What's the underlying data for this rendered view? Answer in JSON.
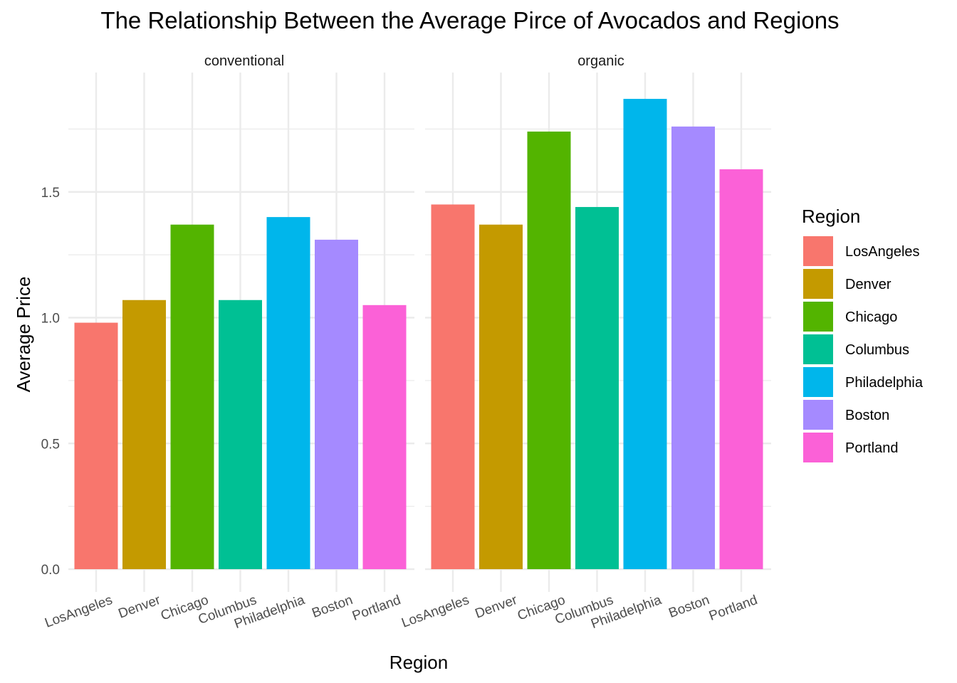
{
  "chart_data": {
    "type": "bar",
    "title": "The Relationship Between the Average Pirce of Avocados and Regions",
    "xlabel": "Region",
    "ylabel": "Average Price",
    "ylim": [
      0,
      1.9
    ],
    "y_ticks": [
      "0.0",
      "0.5",
      "1.0",
      "1.5"
    ],
    "grid": true,
    "categories": [
      "LosAngeles",
      "Denver",
      "Chicago",
      "Columbus",
      "Philadelphia",
      "Boston",
      "Portland"
    ],
    "colors": [
      "#F8766D",
      "#C49A00",
      "#53B400",
      "#00C094",
      "#00B6EB",
      "#A58AFF",
      "#FB61D7"
    ],
    "panels": [
      {
        "name": "conventional",
        "values": [
          0.98,
          1.07,
          1.37,
          1.07,
          1.4,
          1.31,
          1.05
        ]
      },
      {
        "name": "organic",
        "values": [
          1.45,
          1.37,
          1.74,
          1.44,
          1.87,
          1.76,
          1.59
        ]
      }
    ],
    "legend": {
      "title": "Region",
      "position": "right",
      "entries": [
        "LosAngeles",
        "Denver",
        "Chicago",
        "Columbus",
        "Philadelphia",
        "Boston",
        "Portland"
      ]
    }
  }
}
